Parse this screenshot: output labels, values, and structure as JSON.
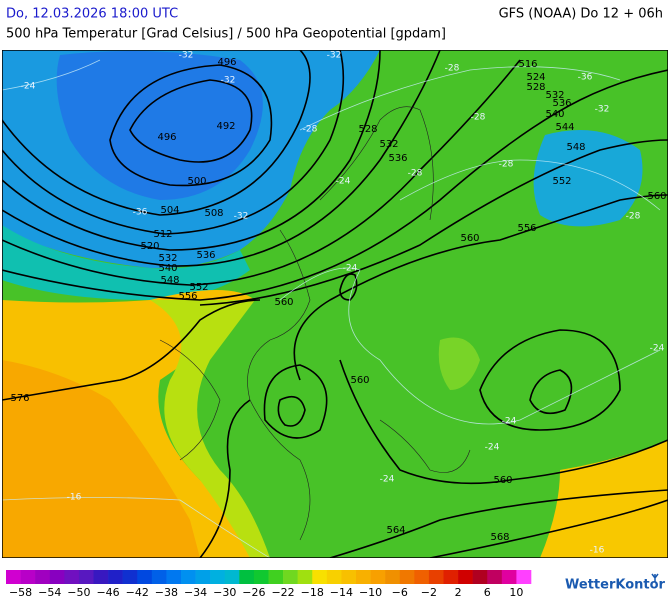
{
  "header": {
    "left": "Do, 12.03.2026 18:00 UTC",
    "right": "GFS (NOAA) Do 12 + 06h",
    "subtitle": "500 hPa Temperatur [Grad Celsius] / 500 hPa Geopotential [gpdam]"
  },
  "map": {
    "contour_labels": [
      "496",
      "496",
      "492",
      "500",
      "504",
      "508",
      "512",
      "520",
      "532",
      "536",
      "540",
      "548",
      "552",
      "556",
      "560",
      "560",
      "576",
      "516",
      "524",
      "528",
      "532",
      "536",
      "540",
      "544",
      "548",
      "552",
      "556",
      "560",
      "560",
      "528",
      "532",
      "536",
      "560",
      "564",
      "568"
    ],
    "isotherm_labels": [
      "-32",
      "-32",
      "-32",
      "-32",
      "-32",
      "-36",
      "-36",
      "-28",
      "-28",
      "-28",
      "-28",
      "-28",
      "-28",
      "-24",
      "-24",
      "-24",
      "-24",
      "-24",
      "-24",
      "-24",
      "-16",
      "-16"
    ]
  },
  "legend": {
    "labels": [
      "−58",
      "−54",
      "−50",
      "−46",
      "−42",
      "−38",
      "−34",
      "−30",
      "−26",
      "−22",
      "−18",
      "−14",
      "−10",
      "−6",
      "−2",
      "2",
      "6",
      "10"
    ],
    "colors": [
      "#d000d0",
      "#b800c8",
      "#a000c0",
      "#8800c0",
      "#7010c0",
      "#5818c0",
      "#3818c0",
      "#2020c8",
      "#1030d0",
      "#0048e0",
      "#0060e8",
      "#0078f0",
      "#0090f0",
      "#00a0e8",
      "#00b0e0",
      "#00b8d0",
      "#00c040",
      "#10c830",
      "#40d020",
      "#70d820",
      "#a0e010",
      "#f8e000",
      "#f8d000",
      "#f8c000",
      "#f8b000",
      "#f8a000",
      "#f09000",
      "#f07800",
      "#f06000",
      "#e84000",
      "#e02000",
      "#d00000",
      "#b00020",
      "#c00060",
      "#e000a0",
      "#ff40ff"
    ]
  },
  "logo": "WetterKontor"
}
